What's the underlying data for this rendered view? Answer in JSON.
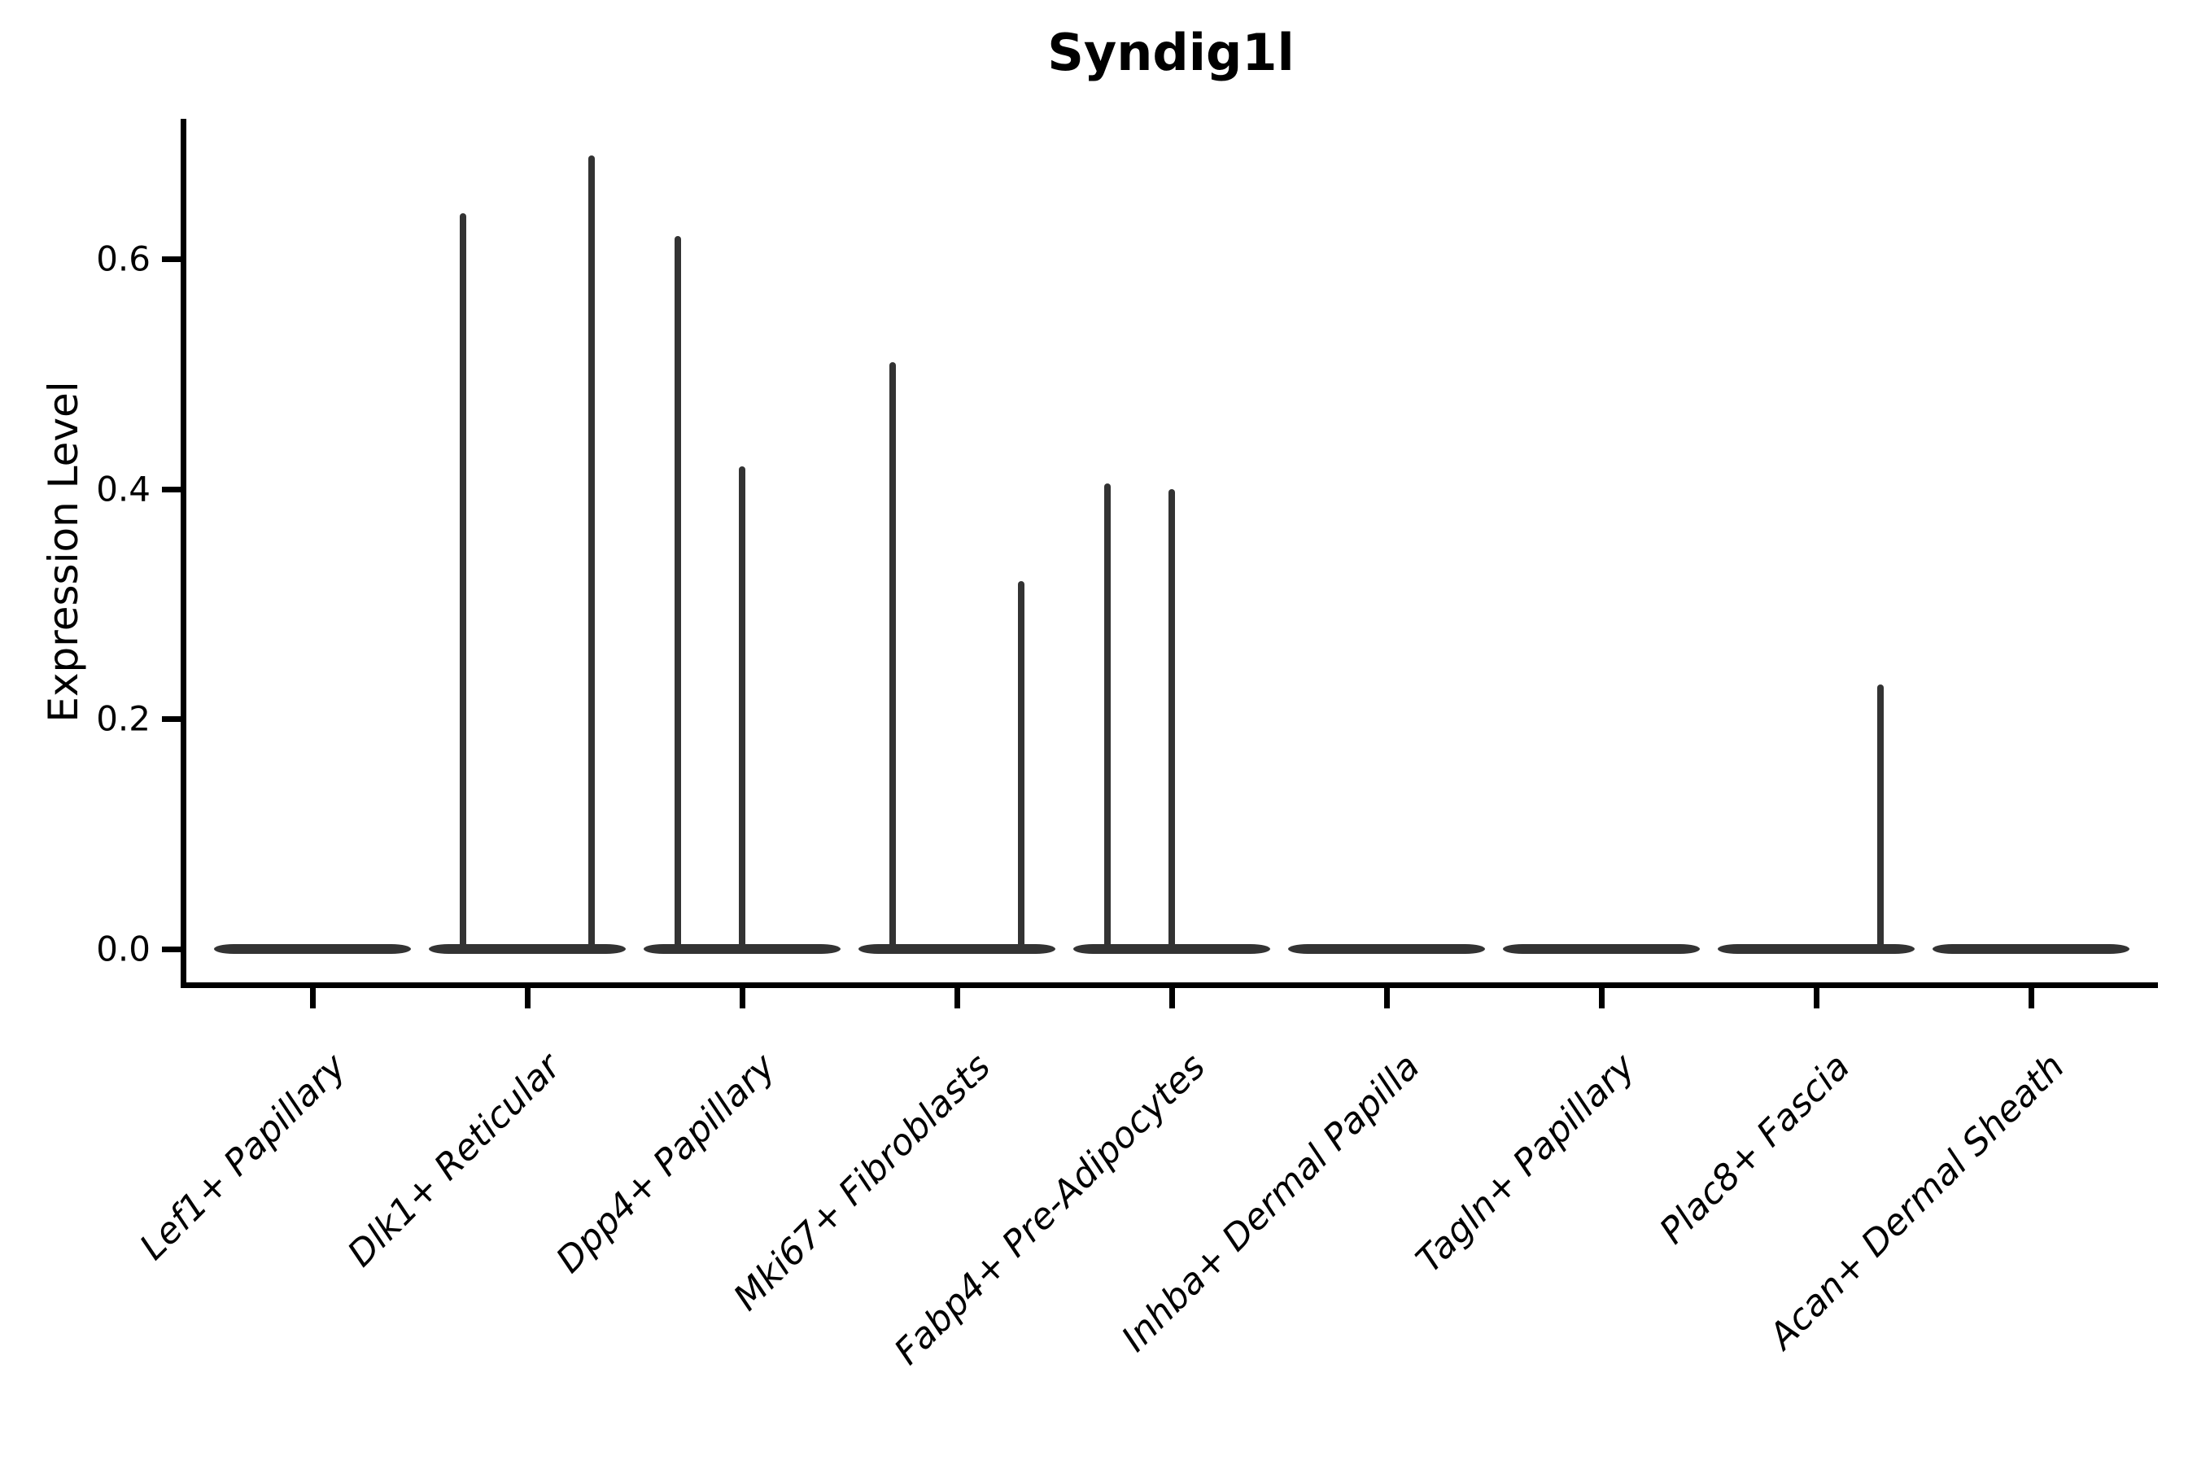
{
  "chart_data": {
    "type": "violin",
    "title": "Syndig1l",
    "ylabel": "Expression Level",
    "xlabel": "",
    "y_tick_labels": [
      "0.0",
      "0.2",
      "0.4",
      "0.6"
    ],
    "y_tick_values": [
      0.0,
      0.2,
      0.4,
      0.6
    ],
    "ylim": [
      0,
      0.72
    ],
    "grid": false,
    "legend": "none",
    "background": "#ffffff",
    "violin_color": "#333333",
    "axis_color": "#000000",
    "groups_per_category": 3,
    "group_offsets": [
      -0.3,
      0,
      0.3
    ],
    "categories": [
      "Lef1+ Papillary",
      "Dlk1+ Reticular",
      "Dpp4+ Papillary",
      "Mki67+ Fibroblasts",
      "Fabp4+ Pre-Adipocytes",
      "Inhba+ Dermal Papilla",
      "Tagln+ Papillary",
      "Plac8+ Fascia",
      "Acan+ Dermal Sheath"
    ],
    "violins": [
      {
        "category": "Lef1+ Papillary",
        "base_at_zero": true,
        "spikes": []
      },
      {
        "category": "Dlk1+ Reticular",
        "base_at_zero": true,
        "spikes": [
          {
            "offset": -0.3,
            "max_expression": 0.64
          },
          {
            "offset": 0.3,
            "max_expression": 0.69
          }
        ]
      },
      {
        "category": "Dpp4+ Papillary",
        "base_at_zero": true,
        "spikes": [
          {
            "offset": -0.3,
            "max_expression": 0.62
          },
          {
            "offset": 0.0,
            "max_expression": 0.42
          }
        ]
      },
      {
        "category": "Mki67+ Fibroblasts",
        "base_at_zero": true,
        "spikes": [
          {
            "offset": -0.3,
            "max_expression": 0.51
          },
          {
            "offset": 0.3,
            "max_expression": 0.32
          }
        ]
      },
      {
        "category": "Fabp4+ Pre-Adipocytes",
        "base_at_zero": true,
        "spikes": [
          {
            "offset": -0.3,
            "max_expression": 0.405
          },
          {
            "offset": 0.0,
            "max_expression": 0.4
          }
        ]
      },
      {
        "category": "Inhba+ Dermal Papilla",
        "base_at_zero": true,
        "spikes": []
      },
      {
        "category": "Tagln+ Papillary",
        "base_at_zero": true,
        "spikes": []
      },
      {
        "category": "Plac8+ Fascia",
        "base_at_zero": true,
        "spikes": [
          {
            "offset": 0.3,
            "max_expression": 0.23
          }
        ]
      },
      {
        "category": "Acan+ Dermal Sheath",
        "base_at_zero": true,
        "spikes": []
      }
    ]
  }
}
